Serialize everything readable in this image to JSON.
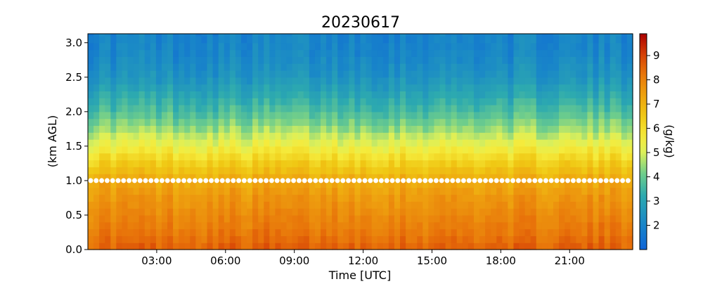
{
  "chart_data": {
    "type": "heatmap",
    "title": "20230617",
    "xlabel": "Time [UTC]",
    "ylabel": "(km AGL)",
    "colorbar_label": "(g/kg)",
    "colormap": "jet-like (blue-teal-yellow-orange-red)",
    "colors": {
      "low": "#1a6fd6",
      "mid_teal": "#3fb2a0",
      "mid_yellow": "#e8e94a",
      "high_orange": "#e88a10",
      "max": "#b20000",
      "marker": "#ffffff"
    },
    "x_range_hours": [
      0.0,
      23.75
    ],
    "ylim": [
      0.0,
      3.13
    ],
    "clim": [
      1.0,
      9.9
    ],
    "x_ticks": [
      {
        "value": 3,
        "label": "03:00"
      },
      {
        "value": 6,
        "label": "06:00"
      },
      {
        "value": 9,
        "label": "09:00"
      },
      {
        "value": 12,
        "label": "12:00"
      },
      {
        "value": 15,
        "label": "15:00"
      },
      {
        "value": 18,
        "label": "18:00"
      },
      {
        "value": 21,
        "label": "21:00"
      }
    ],
    "y_ticks": [
      {
        "value": 0.0,
        "label": "0.0"
      },
      {
        "value": 0.5,
        "label": "0.5"
      },
      {
        "value": 1.0,
        "label": "1.0"
      },
      {
        "value": 1.5,
        "label": "1.5"
      },
      {
        "value": 2.0,
        "label": "2.0"
      },
      {
        "value": 2.5,
        "label": "2.5"
      },
      {
        "value": 3.0,
        "label": "3.0"
      }
    ],
    "colorbar_ticks": [
      {
        "value": 2,
        "label": "2"
      },
      {
        "value": 3,
        "label": "3"
      },
      {
        "value": 4,
        "label": "4"
      },
      {
        "value": 5,
        "label": "5"
      },
      {
        "value": 6,
        "label": "6"
      },
      {
        "value": 7,
        "label": "7"
      },
      {
        "value": 8,
        "label": "8"
      },
      {
        "value": 9,
        "label": "9"
      }
    ],
    "marker_line_height_km": 1.0,
    "profile_height_km": [
      0.0,
      0.25,
      0.5,
      0.75,
      1.0,
      1.25,
      1.5,
      1.75,
      2.0,
      2.25,
      2.5,
      2.75,
      3.0
    ],
    "profile_mean_value": [
      8.6,
      8.2,
      7.9,
      7.6,
      7.2,
      6.4,
      5.4,
      4.5,
      3.7,
      3.1,
      2.5,
      2.2,
      2.0
    ]
  }
}
